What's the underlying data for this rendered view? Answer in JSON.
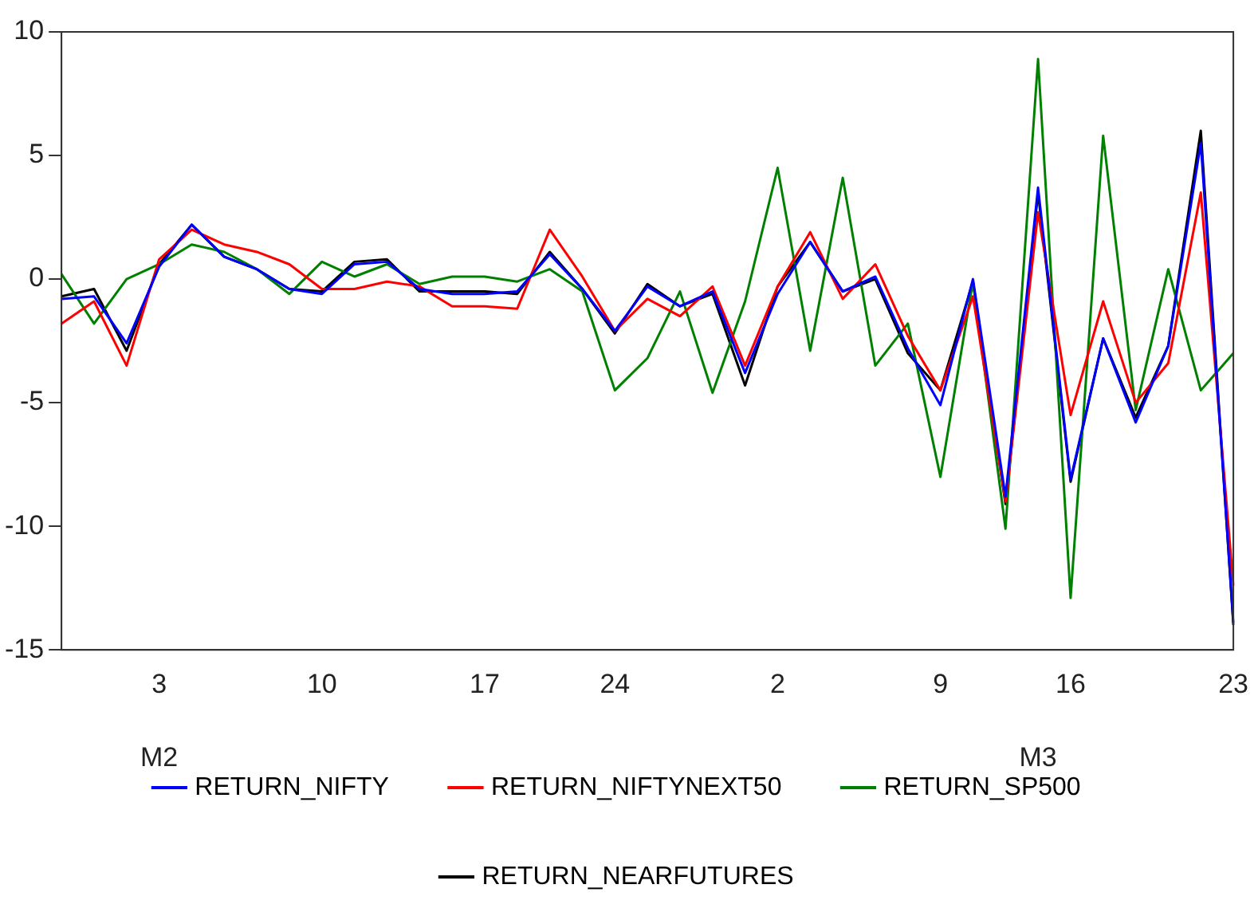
{
  "chart_data": {
    "type": "line",
    "categories": [
      null,
      null,
      null,
      "3",
      null,
      null,
      null,
      null,
      "10",
      null,
      null,
      null,
      null,
      "17",
      null,
      null,
      null,
      "24",
      null,
      null,
      null,
      null,
      "2",
      null,
      null,
      null,
      null,
      "9",
      null,
      null,
      null,
      "16",
      null,
      null,
      null,
      null,
      "23"
    ],
    "series": [
      {
        "name": "RETURN_NIFTY",
        "color": "#0000ff",
        "values": [
          -0.8,
          -0.7,
          -2.6,
          0.5,
          2.2,
          0.9,
          0.4,
          -0.4,
          -0.6,
          0.6,
          0.7,
          -0.4,
          -0.6,
          -0.6,
          -0.5,
          1.0,
          -0.4,
          -2.1,
          -0.3,
          -1.1,
          -0.5,
          -3.8,
          -0.6,
          1.5,
          -0.5,
          0.1,
          -2.8,
          -5.1,
          0.0,
          -8.8,
          3.7,
          -8.1,
          -2.4,
          -5.8,
          -2.7,
          5.5,
          -13.9
        ]
      },
      {
        "name": "RETURN_NIFTYNEXT50",
        "color": "#ff0000",
        "values": [
          -1.8,
          -0.9,
          -3.5,
          0.8,
          2.0,
          1.4,
          1.1,
          0.6,
          -0.4,
          -0.4,
          -0.1,
          -0.3,
          -1.1,
          -1.1,
          -1.2,
          2.0,
          0.1,
          -2.1,
          -0.8,
          -1.5,
          -0.3,
          -3.5,
          -0.3,
          1.9,
          -0.8,
          0.6,
          -2.3,
          -4.5,
          -0.7,
          -9.0,
          2.7,
          -5.5,
          -0.9,
          -5.0,
          -3.4,
          3.5,
          -12.4
        ]
      },
      {
        "name": "RETURN_SP500",
        "color": "#008000",
        "values": [
          0.2,
          -1.8,
          0.0,
          0.6,
          1.4,
          1.1,
          0.4,
          -0.6,
          0.7,
          0.1,
          0.6,
          -0.2,
          0.1,
          0.1,
          -0.1,
          0.4,
          -0.5,
          -4.5,
          -3.2,
          -0.5,
          -4.6,
          -0.9,
          4.5,
          -2.9,
          4.1,
          -3.5,
          -1.8,
          -8.0,
          -0.1,
          -10.1,
          8.9,
          -12.9,
          5.8,
          -5.3,
          0.4,
          -4.5,
          -3.0
        ]
      },
      {
        "name": "RETURN_NEARFUTURES",
        "color": "#000000",
        "values": [
          -0.7,
          -0.4,
          -2.9,
          0.6,
          2.2,
          0.9,
          0.4,
          -0.4,
          -0.5,
          0.7,
          0.8,
          -0.5,
          -0.5,
          -0.5,
          -0.6,
          1.1,
          -0.4,
          -2.2,
          -0.2,
          -1.1,
          -0.6,
          -4.3,
          -0.3,
          1.5,
          -0.5,
          0.0,
          -3.0,
          -4.5,
          -0.1,
          -9.1,
          3.5,
          -8.2,
          -2.4,
          -5.6,
          -2.7,
          6.0,
          -14.0
        ]
      }
    ],
    "ylim": [
      -15,
      10
    ],
    "yticks": [
      -15,
      -10,
      -5,
      0,
      5,
      10
    ],
    "annotations": [
      "M2",
      "M3"
    ],
    "legend": "bottom",
    "grid": false,
    "marker": "none",
    "line_style": "solid"
  }
}
